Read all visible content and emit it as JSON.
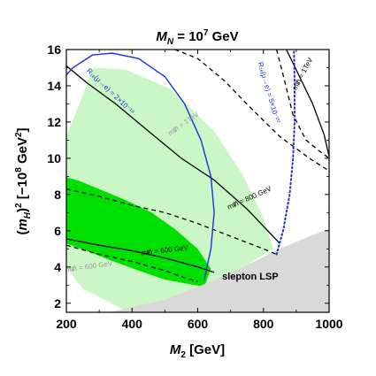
{
  "chart_data": {
    "type": "line",
    "title": "M_N = 10^7 GeV",
    "title_main": "M",
    "title_sub": "N",
    "title_rest": " = 10",
    "title_sup": "7",
    "title_unit": " GeV",
    "xlabel_main": "M",
    "xlabel_sub": "2",
    "xlabel_unit": " [GeV]",
    "ylabel_open": "(",
    "ylabel_main": "m",
    "ylabel_sub": "H",
    "ylabel_close": ")",
    "ylabel_sup": "2",
    "ylabel_unit_open": " [−10",
    "ylabel_unit_sup": "8",
    "ylabel_unit_rest": " GeV",
    "ylabel_unit_sup2": "2",
    "ylabel_unit_close": "]",
    "xlim": [
      200,
      1000
    ],
    "ylim": [
      1.5,
      16
    ],
    "xticks": [
      200,
      400,
      600,
      800,
      1000
    ],
    "yticks": [
      2,
      4,
      6,
      8,
      10,
      12,
      14,
      16
    ],
    "grid": false,
    "colors": {
      "light_green": "#cbf7c6",
      "dark_green": "#00e000",
      "blue": "#1f2fe0",
      "gray_region": "#d9d9d9",
      "gray_text": "#9a9a9a"
    },
    "regions": [
      {
        "name": "light-green-band",
        "color": "#cbf7c6",
        "points": [
          [
            282,
            15.0
          ],
          [
            380,
            14.9
          ],
          [
            520,
            13.8
          ],
          [
            650,
            11.5
          ],
          [
            740,
            9.0
          ],
          [
            800,
            6.7
          ],
          [
            830,
            5.0
          ],
          [
            740,
            4.0
          ],
          [
            600,
            2.7
          ],
          [
            380,
            1.6
          ],
          [
            250,
            2.8
          ],
          [
            200,
            4.0
          ],
          [
            200,
            11.2
          ],
          [
            240,
            13.0
          ]
        ]
      },
      {
        "name": "dark-green-band",
        "color": "#00e000",
        "points": [
          [
            200,
            8.95
          ],
          [
            240,
            8.75
          ],
          [
            300,
            8.3
          ],
          [
            380,
            7.7
          ],
          [
            460,
            7.0
          ],
          [
            530,
            6.1
          ],
          [
            600,
            5.0
          ],
          [
            640,
            3.9
          ],
          [
            620,
            2.9
          ],
          [
            500,
            3.3
          ],
          [
            420,
            3.8
          ],
          [
            330,
            4.4
          ],
          [
            260,
            4.9
          ],
          [
            200,
            5.3
          ]
        ]
      },
      {
        "name": "slepton-lsp",
        "color": "#d9d9d9",
        "points": [
          [
            330,
            1.5
          ],
          [
            500,
            2.2
          ],
          [
            640,
            3.2
          ],
          [
            760,
            4.2
          ],
          [
            850,
            5.0
          ],
          [
            940,
            5.7
          ],
          [
            1000,
            6.1
          ],
          [
            1000,
            1.5
          ]
        ]
      }
    ],
    "series": [
      {
        "style": "solid-black",
        "points": [
          [
            200,
            15.1
          ],
          [
            260,
            14.2
          ],
          [
            350,
            13.0
          ],
          [
            450,
            11.5
          ],
          [
            550,
            10.0
          ],
          [
            650,
            8.8
          ],
          [
            750,
            7.2
          ],
          [
            850,
            5.3
          ]
        ]
      },
      {
        "style": "solid-black",
        "points": [
          [
            200,
            5.55
          ],
          [
            300,
            5.2
          ],
          [
            400,
            4.9
          ],
          [
            500,
            4.5
          ],
          [
            600,
            4.0
          ],
          [
            650,
            3.7
          ]
        ]
      },
      {
        "style": "solid-black",
        "points": [
          [
            870,
            16.0
          ],
          [
            910,
            14.5
          ],
          [
            950,
            13.0
          ],
          [
            985,
            11.3
          ],
          [
            1000,
            10.1
          ]
        ]
      },
      {
        "style": "dashed-black",
        "points": [
          [
            200,
            8.3
          ],
          [
            300,
            7.9
          ],
          [
            400,
            7.4
          ],
          [
            500,
            7.0
          ],
          [
            600,
            6.4
          ],
          [
            700,
            5.7
          ],
          [
            800,
            5.0
          ],
          [
            840,
            4.7
          ]
        ]
      },
      {
        "style": "dashed-black",
        "points": [
          [
            200,
            5.2
          ],
          [
            300,
            4.7
          ],
          [
            400,
            4.3
          ],
          [
            500,
            3.8
          ],
          [
            560,
            3.4
          ],
          [
            600,
            3.2
          ]
        ]
      },
      {
        "style": "dashed-black",
        "points": [
          [
            530,
            16.0
          ],
          [
            600,
            15.5
          ],
          [
            680,
            14.3
          ],
          [
            760,
            12.8
          ],
          [
            850,
            11.2
          ],
          [
            940,
            10.0
          ],
          [
            1000,
            9.3
          ]
        ]
      },
      {
        "style": "dashed-black",
        "points": [
          [
            840,
            16.0
          ],
          [
            860,
            14.6
          ],
          [
            890,
            12.4
          ],
          [
            930,
            11.0
          ],
          [
            970,
            10.4
          ],
          [
            1000,
            10.0
          ]
        ]
      },
      {
        "style": "solid-blue",
        "points": [
          [
            620,
            3.3
          ],
          [
            640,
            5.0
          ],
          [
            650,
            7.0
          ],
          [
            640,
            9.0
          ],
          [
            610,
            11.0
          ],
          [
            560,
            13.0
          ],
          [
            500,
            14.5
          ],
          [
            420,
            15.5
          ],
          [
            340,
            15.8
          ],
          [
            280,
            15.7
          ],
          [
            220,
            15.0
          ],
          [
            200,
            14.6
          ]
        ]
      },
      {
        "style": "dotted-blue",
        "points": [
          [
            840,
            4.7
          ],
          [
            860,
            6.0
          ],
          [
            880,
            8.0
          ],
          [
            890,
            10.0
          ],
          [
            895,
            12.0
          ],
          [
            895,
            14.0
          ],
          [
            893,
            16.0
          ]
        ]
      }
    ],
    "annotations": [
      {
        "text": "R₁ₑ(μ→e) = 2×10⁻¹⁹",
        "x": 330,
        "y": 13.6,
        "angle": 44,
        "color": "#1f2fe0"
      },
      {
        "text": "R₁ₑ(μ→e) = 5×10⁻²⁰",
        "x": 810,
        "y": 13.6,
        "angle": 74,
        "color": "#1f2fe0"
      },
      {
        "text": "mᵺ = 1TeV",
        "x": 560,
        "y": 11.8,
        "angle": -35,
        "color": "#9a9a9a"
      },
      {
        "text": "mᵺ = 1TeV",
        "x": 925,
        "y": 14.6,
        "angle": -62,
        "color": "#000000"
      },
      {
        "text": "mᵺ = 800 GeV",
        "x": 760,
        "y": 7.7,
        "angle": -24,
        "color": "#000000"
      },
      {
        "text": "mᵺ = 600 GeV",
        "x": 500,
        "y": 4.8,
        "angle": -7,
        "color": "#000000"
      },
      {
        "text": "mᵺ = 600 GeV",
        "x": 270,
        "y": 3.9,
        "angle": -8,
        "color": "#9a9a9a"
      }
    ],
    "region_labels": [
      {
        "text": "slepton LSP",
        "x": 760,
        "y": 3.3
      }
    ]
  }
}
